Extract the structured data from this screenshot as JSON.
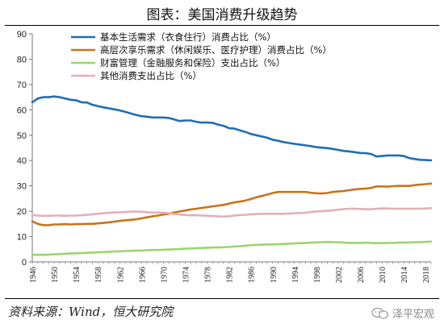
{
  "title": "图表：美国消费升级趋势",
  "source": "资料来源：Wind，恒大研究院",
  "watermark": "泽平宏观",
  "colors": {
    "basic": "#1f6db5",
    "higher": "#c8741b",
    "financial": "#9bd66a",
    "other": "#e2b0b8"
  },
  "chart_data": {
    "type": "line",
    "x": [
      1946,
      1947,
      1948,
      1949,
      1950,
      1951,
      1952,
      1953,
      1954,
      1955,
      1956,
      1957,
      1958,
      1959,
      1960,
      1961,
      1962,
      1963,
      1964,
      1965,
      1966,
      1967,
      1968,
      1969,
      1970,
      1971,
      1972,
      1973,
      1974,
      1975,
      1976,
      1977,
      1978,
      1979,
      1980,
      1981,
      1982,
      1983,
      1984,
      1985,
      1986,
      1987,
      1988,
      1989,
      1990,
      1991,
      1992,
      1993,
      1994,
      1995,
      1996,
      1997,
      1998,
      1999,
      2000,
      2001,
      2002,
      2003,
      2004,
      2005,
      2006,
      2007,
      2008,
      2009,
      2010,
      2011,
      2012,
      2013,
      2014,
      2015,
      2016,
      2017,
      2018,
      2019
    ],
    "xticks": [
      1946,
      1950,
      1954,
      1958,
      1962,
      1966,
      1970,
      1974,
      1978,
      1982,
      1986,
      1990,
      1994,
      1998,
      2002,
      2006,
      2010,
      2014,
      2018
    ],
    "ylim": [
      0,
      90
    ],
    "yticks": [
      0,
      10,
      20,
      30,
      40,
      50,
      60,
      70,
      80,
      90
    ],
    "grid": false,
    "legend_position": "top",
    "series": [
      {
        "name": "基本生活需求（衣食住行）消费占比（%）",
        "color_key": "basic",
        "values": [
          63,
          64.5,
          65,
          65,
          65.3,
          65,
          64.5,
          64,
          63.8,
          63,
          62.9,
          62,
          61.5,
          61,
          60.6,
          60.2,
          59.8,
          59.2,
          58.6,
          58,
          57.5,
          57.3,
          57,
          57,
          57,
          56.8,
          56.2,
          55.6,
          55.8,
          55.8,
          55.3,
          55,
          55,
          54.9,
          54.2,
          53.7,
          52.8,
          52.6,
          51.9,
          51.3,
          50.5,
          50,
          49.5,
          49,
          48.2,
          47.8,
          47.3,
          46.9,
          46.6,
          46.3,
          46,
          45.7,
          45.3,
          45.1,
          44.9,
          44.6,
          44.2,
          43.8,
          43.6,
          43.3,
          43,
          42.9,
          42.6,
          41.6,
          41.8,
          42,
          42,
          42,
          41.8,
          41,
          40.6,
          40.3,
          40.2,
          40.1
        ]
      },
      {
        "name": "高层次享乐需求（休闲娱乐、医疗护理）消费占比（%）",
        "color_key": "higher",
        "values": [
          16,
          15,
          14.5,
          14.5,
          14.8,
          14.8,
          14.9,
          14.8,
          14.9,
          14.9,
          15,
          15,
          15.2,
          15.4,
          15.6,
          15.9,
          16.2,
          16.4,
          16.6,
          16.8,
          17.2,
          17.6,
          18,
          18.3,
          18.7,
          19,
          19.5,
          19.9,
          20.3,
          20.7,
          21,
          21.3,
          21.6,
          21.9,
          22.2,
          22.5,
          23,
          23.5,
          23.8,
          24.2,
          24.8,
          25.5,
          26,
          26.6,
          27.2,
          27.6,
          27.6,
          27.6,
          27.6,
          27.6,
          27.6,
          27.3,
          27.1,
          27,
          27.2,
          27.6,
          27.8,
          28,
          28.3,
          28.6,
          28.8,
          28.9,
          29.2,
          29.8,
          29.8,
          29.7,
          29.9,
          30,
          30,
          30,
          30.3,
          30.5,
          30.7,
          30.9
        ]
      },
      {
        "name": "财富管理（金融服务和保险）支出占比（%）",
        "color_key": "financial",
        "values": [
          2.8,
          2.8,
          2.8,
          2.9,
          3,
          3.1,
          3.2,
          3.3,
          3.4,
          3.5,
          3.6,
          3.7,
          3.8,
          3.9,
          4,
          4.1,
          4.2,
          4.3,
          4.4,
          4.5,
          4.5,
          4.6,
          4.7,
          4.7,
          4.8,
          4.9,
          5,
          5.1,
          5.2,
          5.3,
          5.4,
          5.5,
          5.6,
          5.7,
          5.7,
          5.8,
          5.9,
          6.1,
          6.2,
          6.4,
          6.6,
          6.7,
          6.8,
          6.9,
          6.9,
          7,
          7.1,
          7.2,
          7.3,
          7.4,
          7.5,
          7.6,
          7.7,
          7.8,
          7.9,
          7.8,
          7.8,
          7.6,
          7.5,
          7.5,
          7.5,
          7.6,
          7.5,
          7.4,
          7.4,
          7.5,
          7.5,
          7.6,
          7.6,
          7.7,
          7.8,
          7.8,
          7.9,
          8
        ]
      },
      {
        "name": "其他消费支出占比（%）",
        "color_key": "other",
        "values": [
          18.5,
          18.3,
          18.2,
          18.2,
          18.3,
          18.3,
          18.2,
          18.3,
          18.3,
          18.4,
          18.6,
          18.8,
          19,
          19.2,
          19.4,
          19.5,
          19.6,
          19.7,
          19.8,
          19.9,
          19.8,
          19.6,
          19.5,
          19.5,
          19.4,
          19.2,
          18.9,
          18.7,
          18.5,
          18.4,
          18.4,
          18.3,
          18.2,
          18.1,
          18,
          17.9,
          18,
          18.3,
          18.5,
          18.6,
          18.8,
          18.9,
          19,
          19,
          19,
          19,
          19,
          19.1,
          19.2,
          19.3,
          19.4,
          19.7,
          19.9,
          20,
          20.2,
          20.4,
          20.6,
          20.8,
          21,
          21,
          20.9,
          20.8,
          20.8,
          21,
          21.1,
          21.1,
          21,
          21,
          21,
          21,
          21,
          21,
          21.1,
          21.2
        ]
      }
    ]
  }
}
